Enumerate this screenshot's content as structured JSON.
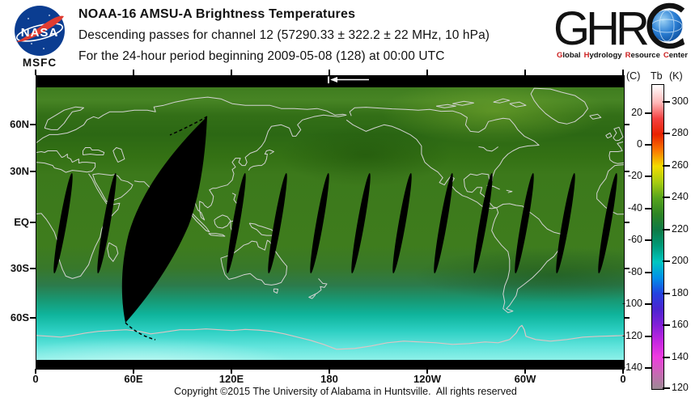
{
  "header": {
    "nasa": {
      "wordmark": "NASA",
      "center": "MSFC"
    },
    "title_line1": "NOAA-16 AMSU-A Brightness Temperatures",
    "title_line2": "Descending passes for channel 12 (57290.33 ± 322.2 ± 22 MHz, 10 hPa)",
    "title_line3": "For the 24-hour period beginning 2009-05-08 (128) at 00:00 UTC",
    "ghrc": {
      "letters": "GHR",
      "sub_words": [
        "Global",
        "Hydrology",
        "Resource",
        "Center"
      ]
    }
  },
  "map": {
    "lat_ticks": [
      "60N",
      "30N",
      "EQ",
      "30S",
      "60S"
    ],
    "lon_ticks": [
      "0",
      "60E",
      "120E",
      "180",
      "120W",
      "60W",
      "0"
    ]
  },
  "colorbar": {
    "unit_left": "(C)",
    "quantity": "Tb",
    "unit_right": "(K)",
    "k_ticks": [
      "300",
      "280",
      "260",
      "240",
      "220",
      "200",
      "180",
      "160",
      "140",
      "120"
    ],
    "c_ticks": [
      "20",
      "0",
      "-20",
      "-40",
      "-60",
      "-80",
      "-100",
      "-120",
      "-140"
    ],
    "range_k": [
      120,
      311
    ],
    "stops": [
      "#ffffff",
      "#ffb6b6",
      "#f44040",
      "#e82200",
      "#fc7800",
      "#f2dc00",
      "#a8cc10",
      "#56a41c",
      "#2e8424",
      "#0e7a46",
      "#009a78",
      "#00c6c0",
      "#0090e8",
      "#2442e0",
      "#4c24d0",
      "#8420d8",
      "#c426e0",
      "#ee3ce0",
      "#c868b4",
      "#9c8a94"
    ]
  },
  "footer": {
    "copyright": "Copyright ©2015 The University of Alabama in Huntsville.  All rights reserved"
  },
  "colors": {
    "nasa_blue": "#0b3d91",
    "nasa_red": "#e03c31",
    "ghrc_accent": "#cc2222",
    "globe_blue": "#2b7fd4",
    "coastline": "#d3d3d3",
    "antarctic_coast": "#ddc5c5"
  }
}
